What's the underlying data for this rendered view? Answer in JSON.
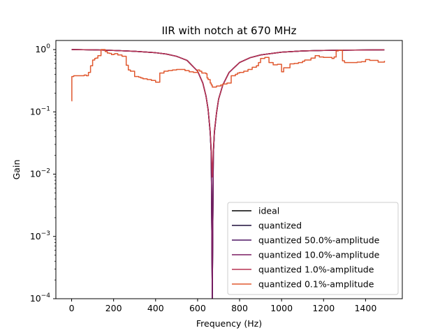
{
  "chart_data": {
    "type": "line",
    "title": "IIR with notch at 670 MHz",
    "xlabel": "Frequency (Hz)",
    "ylabel": "Gain",
    "xlim": [
      -75,
      1575
    ],
    "ylim": [
      0.0001,
      1.4
    ],
    "yscale": "log",
    "grid": false,
    "legend_position": "lower right",
    "x_ticks": [
      0,
      200,
      400,
      600,
      800,
      1000,
      1200,
      1400
    ],
    "x_tick_labels": [
      "0",
      "200",
      "400",
      "600",
      "800",
      "1000",
      "1200",
      "1400"
    ],
    "y_ticks": [
      0.0001,
      0.001,
      0.01,
      0.1,
      1
    ],
    "y_tick_labels": [
      {
        "base": "10",
        "exp": "−4"
      },
      {
        "base": "10",
        "exp": "−3"
      },
      {
        "base": "10",
        "exp": "−2"
      },
      {
        "base": "10",
        "exp": "−1"
      },
      {
        "base": "10",
        "exp": "0"
      }
    ],
    "series": [
      {
        "name": "ideal",
        "color": "#000000",
        "x": [
          0,
          100,
          200,
          300,
          400,
          450,
          500,
          550,
          600,
          625,
          640,
          650,
          660,
          665,
          670,
          675,
          680,
          690,
          700,
          720,
          750,
          800,
          850,
          900,
          1000,
          1100,
          1200,
          1300,
          1400,
          1490
        ],
        "y": [
          1.0,
          0.99,
          0.97,
          0.94,
          0.89,
          0.85,
          0.78,
          0.67,
          0.45,
          0.29,
          0.18,
          0.11,
          0.047,
          0.021,
          0.0001,
          0.021,
          0.047,
          0.095,
          0.16,
          0.27,
          0.43,
          0.62,
          0.74,
          0.82,
          0.91,
          0.95,
          0.97,
          0.98,
          0.985,
          0.99
        ]
      },
      {
        "name": "quantized",
        "color": "#1f0e3a",
        "x": [
          0,
          100,
          200,
          300,
          400,
          450,
          500,
          550,
          600,
          625,
          640,
          650,
          660,
          665,
          670,
          675,
          680,
          690,
          700,
          720,
          750,
          800,
          850,
          900,
          1000,
          1100,
          1200,
          1300,
          1400,
          1490
        ],
        "y": [
          1.0,
          0.99,
          0.97,
          0.94,
          0.89,
          0.85,
          0.78,
          0.67,
          0.45,
          0.29,
          0.18,
          0.11,
          0.047,
          0.021,
          0.0001,
          0.021,
          0.047,
          0.095,
          0.16,
          0.27,
          0.43,
          0.62,
          0.74,
          0.82,
          0.91,
          0.95,
          0.97,
          0.98,
          0.985,
          0.99
        ]
      },
      {
        "name": "quantized 50.0%-amplitude",
        "color": "#4e1563",
        "x": [
          0,
          100,
          200,
          300,
          400,
          450,
          500,
          550,
          600,
          625,
          640,
          650,
          660,
          665,
          670,
          675,
          680,
          690,
          700,
          720,
          750,
          800,
          850,
          900,
          1000,
          1100,
          1200,
          1300,
          1400,
          1490
        ],
        "y": [
          1.0,
          0.99,
          0.97,
          0.94,
          0.89,
          0.85,
          0.78,
          0.67,
          0.45,
          0.29,
          0.18,
          0.11,
          0.047,
          0.021,
          0.0001,
          0.021,
          0.047,
          0.095,
          0.16,
          0.27,
          0.43,
          0.62,
          0.74,
          0.82,
          0.91,
          0.95,
          0.97,
          0.98,
          0.985,
          0.99
        ]
      },
      {
        "name": "quantized 10.0%-amplitude",
        "color": "#7a1c62",
        "x": [
          0,
          100,
          200,
          300,
          400,
          450,
          500,
          550,
          600,
          625,
          640,
          650,
          660,
          665,
          670,
          675,
          680,
          690,
          700,
          720,
          750,
          800,
          850,
          900,
          1000,
          1100,
          1200,
          1300,
          1400,
          1490
        ],
        "y": [
          1.0,
          0.99,
          0.97,
          0.94,
          0.89,
          0.85,
          0.78,
          0.67,
          0.45,
          0.29,
          0.18,
          0.11,
          0.047,
          0.022,
          0.0001,
          0.022,
          0.047,
          0.095,
          0.16,
          0.27,
          0.43,
          0.62,
          0.74,
          0.82,
          0.91,
          0.95,
          0.97,
          0.98,
          0.985,
          0.99
        ]
      },
      {
        "name": "quantized 1.0%-amplitude",
        "color": "#b73352",
        "x": [
          0,
          100,
          200,
          300,
          400,
          450,
          500,
          550,
          600,
          625,
          640,
          650,
          660,
          665,
          670,
          675,
          680,
          690,
          700,
          720,
          750,
          800,
          850,
          900,
          1000,
          1100,
          1200,
          1300,
          1400,
          1490
        ],
        "y": [
          1.0,
          0.99,
          0.97,
          0.94,
          0.89,
          0.85,
          0.78,
          0.67,
          0.45,
          0.29,
          0.18,
          0.11,
          0.05,
          0.025,
          0.009,
          0.025,
          0.05,
          0.095,
          0.16,
          0.27,
          0.43,
          0.62,
          0.74,
          0.82,
          0.91,
          0.95,
          0.97,
          0.98,
          0.985,
          0.99
        ]
      },
      {
        "name": "quantized 0.1%-amplitude",
        "color": "#e0582f",
        "step": true,
        "x": [
          0,
          1,
          10,
          40,
          50,
          60,
          70,
          80,
          90,
          100,
          110,
          115,
          125,
          140,
          160,
          170,
          180,
          190,
          200,
          205,
          220,
          240,
          260,
          270,
          280,
          300,
          320,
          330,
          340,
          360,
          380,
          400,
          420,
          440,
          460,
          480,
          500,
          520,
          540,
          560,
          580,
          600,
          610,
          620,
          640,
          645,
          650,
          660,
          665,
          670,
          675,
          680,
          690,
          710,
          720,
          740,
          760,
          780,
          790,
          800,
          820,
          840,
          860,
          880,
          890,
          900,
          920,
          940,
          960,
          980,
          1000,
          1010,
          1040,
          1060,
          1080,
          1100,
          1110,
          1140,
          1160,
          1180,
          1200,
          1240,
          1250,
          1260,
          1270,
          1290,
          1300,
          1350,
          1360,
          1380,
          1400,
          1410,
          1420,
          1430,
          1460,
          1490
        ],
        "y": [
          0.15,
          0.37,
          0.38,
          0.38,
          0.38,
          0.39,
          0.38,
          0.43,
          0.55,
          0.68,
          0.72,
          0.73,
          0.8,
          1.0,
          0.93,
          0.88,
          0.87,
          0.83,
          0.84,
          0.86,
          0.82,
          0.78,
          0.56,
          0.47,
          0.45,
          0.37,
          0.36,
          0.35,
          0.34,
          0.33,
          0.32,
          0.3,
          0.42,
          0.45,
          0.46,
          0.47,
          0.48,
          0.48,
          0.46,
          0.44,
          0.43,
          0.47,
          0.45,
          0.42,
          0.41,
          0.35,
          0.33,
          0.29,
          0.27,
          0.25,
          0.25,
          0.25,
          0.26,
          0.27,
          0.28,
          0.29,
          0.38,
          0.4,
          0.42,
          0.43,
          0.45,
          0.48,
          0.52,
          0.55,
          0.62,
          0.72,
          0.75,
          0.62,
          0.57,
          0.58,
          0.44,
          0.51,
          0.59,
          0.6,
          0.62,
          0.65,
          0.68,
          0.73,
          0.8,
          0.76,
          0.75,
          0.72,
          0.76,
          0.95,
          0.97,
          0.66,
          0.62,
          0.62,
          0.63,
          0.64,
          0.69,
          0.69,
          0.67,
          0.67,
          0.63,
          0.66
        ]
      }
    ]
  }
}
